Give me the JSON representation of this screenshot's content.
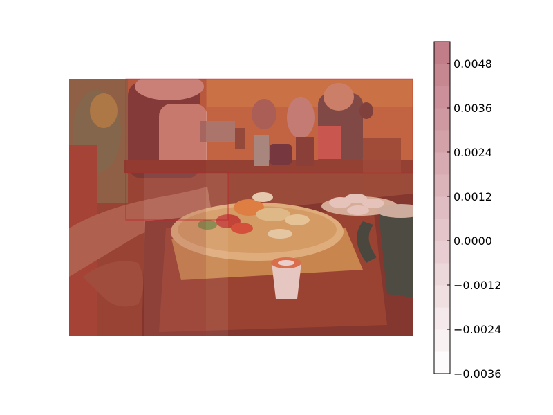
{
  "chart_data": {
    "type": "heatmap",
    "title": "",
    "xlabel": "",
    "ylabel": "",
    "colorbar": {
      "ticks": [
        "0.0048",
        "0.0036",
        "0.0024",
        "0.0012",
        "0.0000",
        "−0.0012",
        "−0.0024",
        "−0.0036"
      ],
      "tick_values": [
        0.0048,
        0.0036,
        0.0024,
        0.0012,
        0.0,
        -0.0012,
        -0.0024,
        -0.0036
      ],
      "range": [
        -0.0036,
        0.0054
      ],
      "steps": 15,
      "colors": {
        "low": "#ffffff",
        "high": "#c07a84"
      }
    },
    "background_image": "photo of a restaurant table with a fruit-topped crepe plate, coffee cup and creamers",
    "regions": [
      {
        "row": 0,
        "col": 0,
        "value": 0.0054
      },
      {
        "row": 0,
        "col": 1,
        "value": 0.0048
      },
      {
        "row": 1,
        "col": 1,
        "value": 0.0054
      }
    ]
  },
  "colors": {
    "photo_warm": "#b5532b",
    "wall": "#c26a2a",
    "tint": "#c87a80",
    "highlight_box": "#c0202a"
  }
}
